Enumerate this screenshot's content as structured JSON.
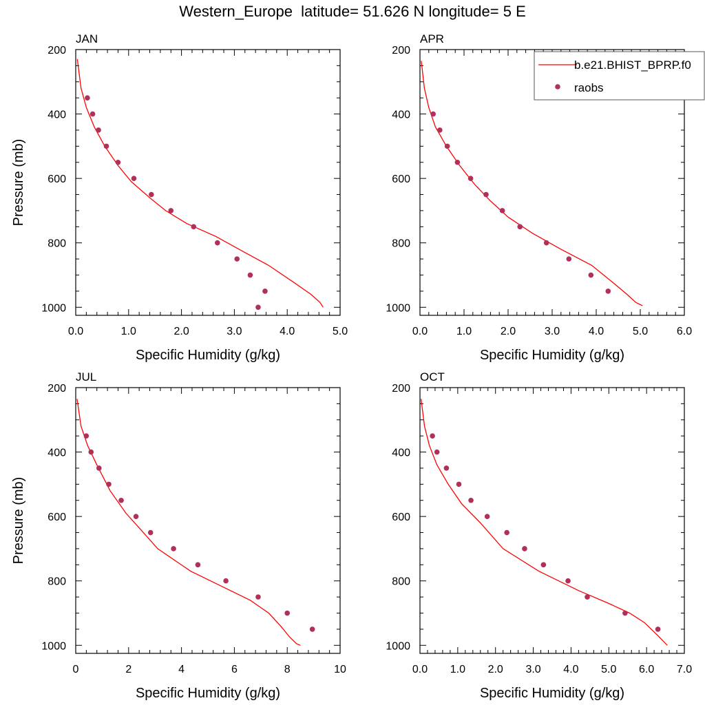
{
  "title": "Western_Europe  latitude= 51.626 N longitude= 5 E",
  "legend": {
    "model_label": "b.e21.BHIST_BPRP.f0",
    "obs_label": "raobs",
    "model_color": "#ff0000",
    "obs_color": "#b0305a",
    "placement": "top-right (APR panel)"
  },
  "chart_data": [
    {
      "type": "line",
      "panel": "JAN",
      "xlabel": "Specific Humidity (g/kg)",
      "ylabel": "Pressure (mb)",
      "xlim": [
        0,
        5
      ],
      "ylim": [
        200,
        1025
      ],
      "y_reversed": true,
      "xticks": [
        0,
        1,
        2,
        3,
        4,
        5
      ],
      "xtick_labels": [
        "0.0",
        "1.0",
        "2.0",
        "3.0",
        "4.0",
        "5.0"
      ],
      "yticks": [
        200,
        400,
        600,
        800,
        1000
      ],
      "ytick_labels": [
        "200",
        "400",
        "600",
        "800",
        "1000"
      ],
      "model": {
        "x": [
          0.03,
          0.1,
          0.2,
          0.35,
          0.55,
          0.8,
          1.05,
          1.4,
          1.7,
          2.1,
          2.65,
          3.2,
          3.65,
          4.1,
          4.45,
          4.62,
          4.68
        ],
        "y": [
          230,
          320,
          380,
          440,
          500,
          560,
          610,
          660,
          700,
          740,
          780,
          830,
          870,
          920,
          960,
          985,
          1000
        ]
      },
      "obs": {
        "x": [
          0.22,
          0.32,
          0.43,
          0.58,
          0.8,
          1.1,
          1.43,
          1.8,
          2.23,
          2.68,
          3.05,
          3.3,
          3.58,
          3.45
        ],
        "y": [
          350,
          400,
          450,
          500,
          550,
          600,
          650,
          700,
          750,
          800,
          850,
          900,
          950,
          1000
        ]
      }
    },
    {
      "type": "line",
      "panel": "APR",
      "xlabel": "Specific Humidity (g/kg)",
      "ylabel": "",
      "xlim": [
        0,
        6
      ],
      "ylim": [
        200,
        1025
      ],
      "y_reversed": true,
      "xticks": [
        0,
        1,
        2,
        3,
        4,
        5,
        6
      ],
      "xtick_labels": [
        "0.0",
        "1.0",
        "2.0",
        "3.0",
        "4.0",
        "5.0",
        "6.0"
      ],
      "yticks": [
        200,
        400,
        600,
        800,
        1000
      ],
      "ytick_labels": [
        "200",
        "400",
        "600",
        "800",
        "1000"
      ],
      "model": {
        "x": [
          0.03,
          0.1,
          0.2,
          0.35,
          0.6,
          0.9,
          1.25,
          1.6,
          2.0,
          2.55,
          3.2,
          3.9,
          4.35,
          4.7,
          4.9,
          5.05
        ],
        "y": [
          235,
          320,
          380,
          440,
          500,
          560,
          620,
          670,
          720,
          770,
          820,
          870,
          920,
          960,
          985,
          995
        ]
      },
      "obs": {
        "x": [
          0.3,
          0.45,
          0.62,
          0.85,
          1.15,
          1.5,
          1.87,
          2.27,
          2.87,
          3.38,
          3.88,
          4.27
        ],
        "y": [
          400,
          450,
          500,
          550,
          600,
          650,
          700,
          750,
          800,
          850,
          900,
          950
        ]
      }
    },
    {
      "type": "line",
      "panel": "JUL",
      "xlabel": "Specific Humidity (g/kg)",
      "ylabel": "Pressure (mb)",
      "xlim": [
        0,
        10
      ],
      "ylim": [
        200,
        1025
      ],
      "y_reversed": true,
      "xticks": [
        0,
        2,
        4,
        6,
        8,
        10
      ],
      "xtick_labels": [
        "0",
        "2",
        "4",
        "6",
        "8",
        "10"
      ],
      "model": {
        "x": [
          0.05,
          0.2,
          0.45,
          0.8,
          1.3,
          1.9,
          2.45,
          3.1,
          4.35,
          5.6,
          6.6,
          7.3,
          7.75,
          8.1,
          8.35,
          8.5
        ],
        "y": [
          235,
          320,
          380,
          440,
          520,
          590,
          640,
          700,
          770,
          820,
          860,
          900,
          940,
          975,
          995,
          1000
        ]
      },
      "yticks": [
        200,
        400,
        600,
        800,
        1000
      ],
      "ytick_labels": [
        "200",
        "400",
        "600",
        "800",
        "1000"
      ],
      "obs": {
        "x": [
          0.4,
          0.58,
          0.88,
          1.25,
          1.72,
          2.28,
          2.83,
          3.7,
          4.62,
          5.68,
          6.9,
          8.0,
          8.95
        ],
        "y": [
          350,
          400,
          450,
          500,
          550,
          600,
          650,
          700,
          750,
          800,
          850,
          900,
          950
        ]
      }
    },
    {
      "type": "line",
      "panel": "OCT",
      "xlabel": "Specific Humidity (g/kg)",
      "ylabel": "",
      "xlim": [
        0,
        7
      ],
      "ylim": [
        200,
        1025
      ],
      "y_reversed": true,
      "xticks": [
        0,
        1,
        2,
        3,
        4,
        5,
        6,
        7
      ],
      "xtick_labels": [
        "0.0",
        "1.0",
        "2.0",
        "3.0",
        "4.0",
        "5.0",
        "6.0",
        "7.0"
      ],
      "yticks": [
        200,
        400,
        600,
        800,
        1000
      ],
      "ytick_labels": [
        "200",
        "400",
        "600",
        "800",
        "1000"
      ],
      "model": {
        "x": [
          0.03,
          0.12,
          0.25,
          0.45,
          0.75,
          1.1,
          1.6,
          2.2,
          3.15,
          4.2,
          5.0,
          5.55,
          5.95,
          6.3,
          6.55
        ],
        "y": [
          235,
          320,
          380,
          440,
          500,
          560,
          620,
          700,
          770,
          830,
          870,
          900,
          930,
          970,
          1000
        ]
      },
      "obs": {
        "x": [
          0.33,
          0.45,
          0.7,
          1.03,
          1.35,
          1.78,
          2.3,
          2.77,
          3.27,
          3.92,
          4.43,
          5.43,
          6.3
        ],
        "y": [
          350,
          400,
          450,
          500,
          550,
          600,
          650,
          700,
          750,
          800,
          850,
          900,
          950
        ]
      }
    }
  ]
}
